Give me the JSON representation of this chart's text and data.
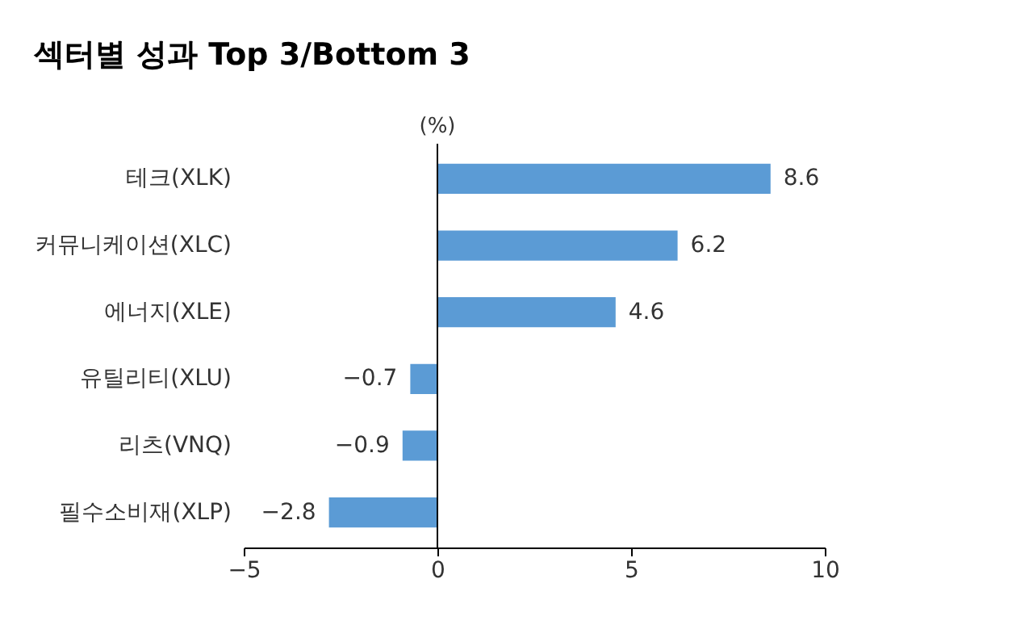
{
  "chart_data": {
    "type": "bar",
    "orientation": "horizontal",
    "title": "섹터별 성과 Top 3/Bottom 3",
    "xlabel": "(%)",
    "categories": [
      "테크(XLK)",
      "커뮤니케이션(XLC)",
      "에너지(XLE)",
      "유틸리티(XLU)",
      "리츠(VNQ)",
      "필수소비재(XLP)"
    ],
    "values": [
      8.6,
      6.2,
      4.6,
      -0.7,
      -0.9,
      -2.8
    ],
    "color": "#5b9bd5",
    "xlim": [
      -5,
      10
    ],
    "xticks": [
      -5,
      0,
      5,
      10
    ],
    "grid": false,
    "data_labels": true,
    "ref_lines": [
      {
        "axis": "x",
        "value": 0,
        "color": "#000000"
      }
    ]
  }
}
